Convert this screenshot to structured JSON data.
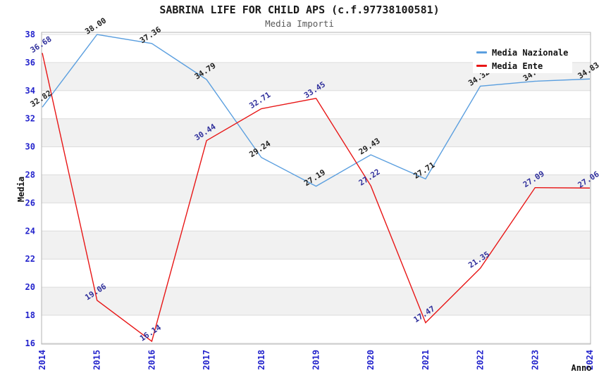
{
  "chart_data": {
    "type": "line",
    "title": "SABRINA LIFE FOR CHILD APS (c.f.97738100581)",
    "subtitle": "Media Importi",
    "xlabel": "Anno",
    "ylabel": "Media",
    "categories": [
      "2014",
      "2015",
      "2016",
      "2017",
      "2018",
      "2019",
      "2020",
      "2021",
      "2022",
      "2023",
      "2024"
    ],
    "ylim": [
      16,
      38
    ],
    "ytick_step": 2,
    "grid": true,
    "alternating_bands": true,
    "legend_position": "top-right",
    "series": [
      {
        "name": "Media Nazionale",
        "color": "#5b9fdf",
        "label_color": "#1f1f1f",
        "values": [
          32.82,
          38.0,
          37.36,
          34.79,
          29.24,
          27.19,
          29.43,
          27.71,
          34.32,
          34.67,
          34.83
        ]
      },
      {
        "name": "Media Ente",
        "color": "#e81616",
        "label_color": "#30309c",
        "values": [
          36.68,
          19.06,
          16.14,
          30.44,
          32.71,
          33.45,
          27.22,
          17.47,
          21.35,
          27.09,
          27.06
        ]
      }
    ],
    "styles": {
      "tick_color": "#2323cc",
      "band_color": "#f1f1f1",
      "grid_color": "#dcdcdc",
      "spine_color": "#b3b3b3",
      "title_color": "#1a1a1a",
      "subtitle_color": "#595959"
    }
  }
}
